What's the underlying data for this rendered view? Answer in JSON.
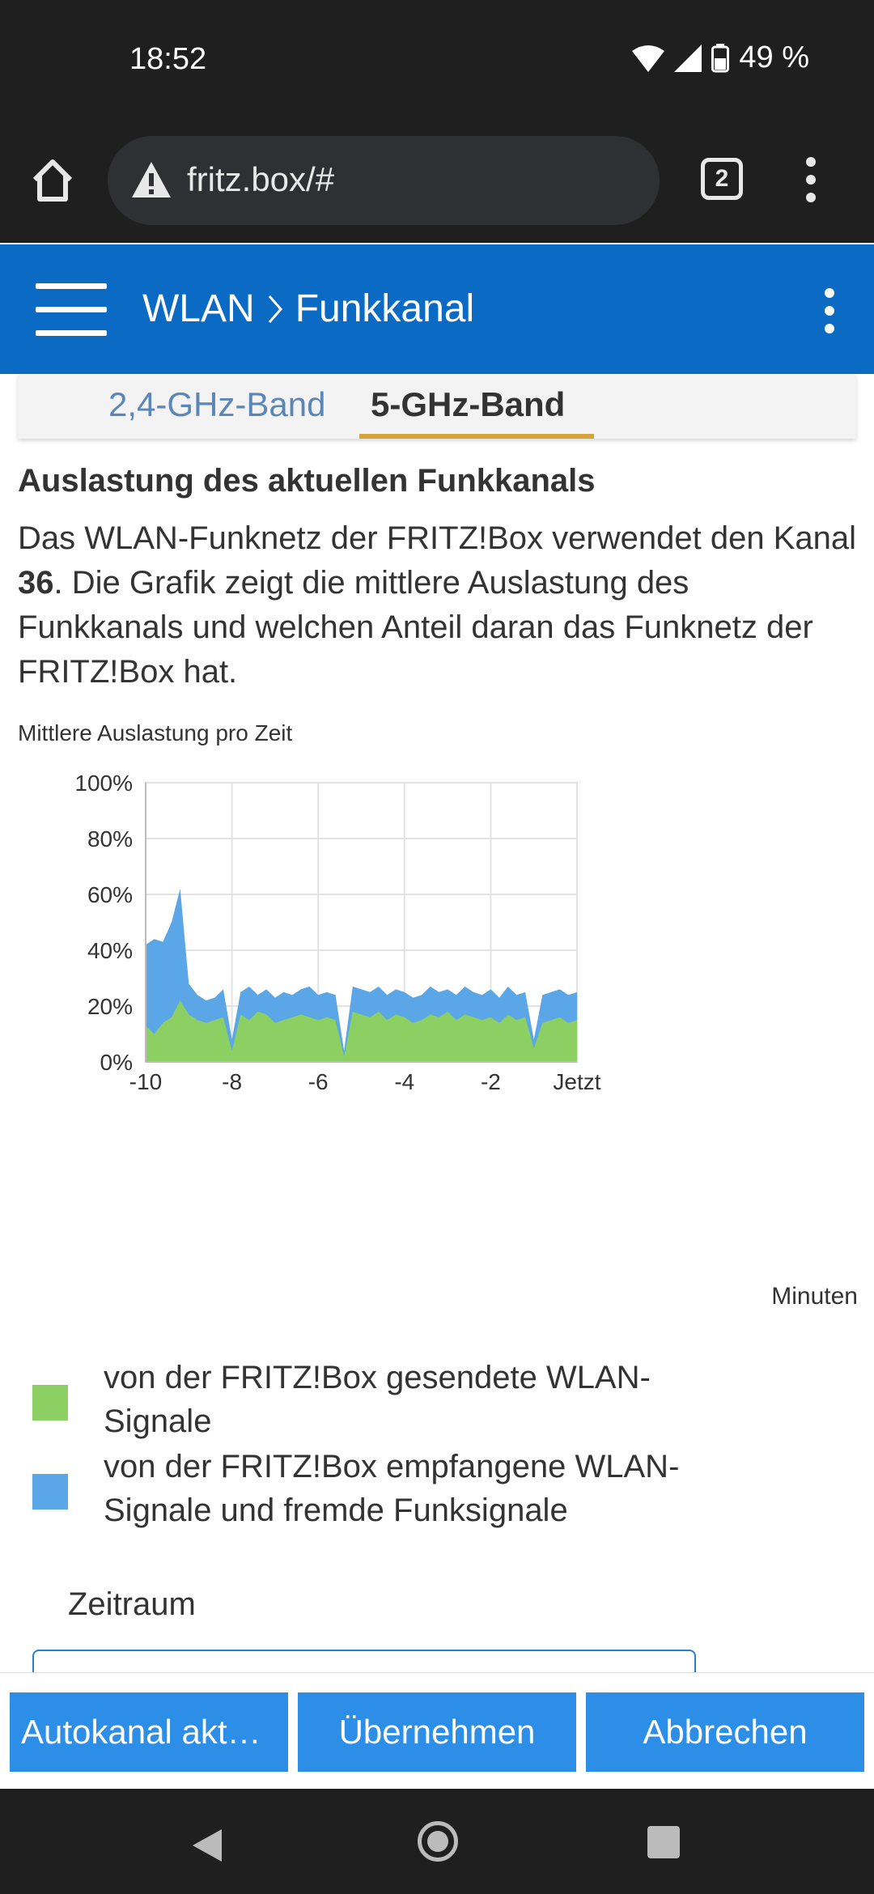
{
  "status_bar": {
    "time": "18:52",
    "battery": "49 %"
  },
  "browser": {
    "url": "fritz.box/#",
    "tab_count": "2"
  },
  "header": {
    "crumb_root": "WLAN",
    "crumb_page": "Funkkanal"
  },
  "tabs": [
    {
      "label": "2,4-GHz-Band"
    },
    {
      "label": "5-GHz-Band"
    }
  ],
  "main": {
    "section_title": "Auslastung des aktuellen Funkkanals",
    "description_1": "Das WLAN-Funknetz der FRITZ!Box verwendet den Kanal ",
    "channel": "36",
    "description_2": ". Die Grafik zeigt die mittlere Auslastung des Funkkanals und welchen Anteil daran das Funknetz der FRITZ!Box hat.",
    "chart_caption": "Mittlere Auslastung pro Zeit",
    "x_unit": "Minuten",
    "legend": [
      {
        "label": "von der FRITZ!Box gesendete WLAN-Signale",
        "color": "#8ccf63"
      },
      {
        "label": "von der FRITZ!Box empfangene WLAN-Signale und fremde Funksignale",
        "color": "#5aa6e6"
      }
    ],
    "period_label": "Zeitraum"
  },
  "chart_data": {
    "type": "area",
    "title": "",
    "xlabel": "",
    "ylabel": "",
    "ylim": [
      0,
      100
    ],
    "xlim": [
      -10,
      0
    ],
    "y_ticks": [
      "0%",
      "20%",
      "40%",
      "60%",
      "80%",
      "100%"
    ],
    "x_ticks": [
      "-10",
      "-8",
      "-6",
      "-4",
      "-2",
      "Jetzt"
    ],
    "grid": true,
    "x": [
      -10,
      -9.8,
      -9.6,
      -9.4,
      -9.2,
      -9.0,
      -8.8,
      -8.6,
      -8.4,
      -8.2,
      -8.0,
      -7.8,
      -7.6,
      -7.4,
      -7.2,
      -7.0,
      -6.8,
      -6.6,
      -6.4,
      -6.2,
      -6.0,
      -5.8,
      -5.6,
      -5.4,
      -5.2,
      -5.0,
      -4.8,
      -4.6,
      -4.4,
      -4.2,
      -4.0,
      -3.8,
      -3.6,
      -3.4,
      -3.2,
      -3.0,
      -2.8,
      -2.6,
      -2.4,
      -2.2,
      -2.0,
      -1.8,
      -1.6,
      -1.4,
      -1.2,
      -1.0,
      -0.8,
      -0.6,
      -0.4,
      -0.2,
      0
    ],
    "series": [
      {
        "name": "von der FRITZ!Box gesendete WLAN-Signale",
        "color": "#8ccf63",
        "values": [
          13,
          10,
          14,
          16,
          22,
          17,
          15,
          14,
          15,
          16,
          4,
          17,
          15,
          18,
          17,
          14,
          15,
          16,
          17,
          16,
          15,
          16,
          15,
          2,
          18,
          17,
          16,
          18,
          15,
          17,
          16,
          14,
          15,
          17,
          16,
          18,
          15,
          17,
          16,
          15,
          16,
          14,
          17,
          15,
          16,
          5,
          14,
          15,
          16,
          14,
          15
        ]
      },
      {
        "name": "von der FRITZ!Box empfangene WLAN-Signale und fremde Funksignale",
        "color": "#5aa6e6",
        "values": [
          42,
          44,
          43,
          50,
          62,
          28,
          24,
          22,
          23,
          26,
          8,
          25,
          27,
          24,
          26,
          23,
          25,
          24,
          26,
          27,
          24,
          25,
          24,
          4,
          27,
          26,
          25,
          27,
          24,
          26,
          25,
          23,
          24,
          27,
          25,
          26,
          24,
          27,
          25,
          24,
          26,
          23,
          27,
          24,
          25,
          8,
          24,
          25,
          26,
          24,
          25
        ]
      }
    ]
  },
  "actions": {
    "autochannel": "Autokanal aktu…",
    "apply": "Übernehmen",
    "cancel": "Abbrechen"
  }
}
